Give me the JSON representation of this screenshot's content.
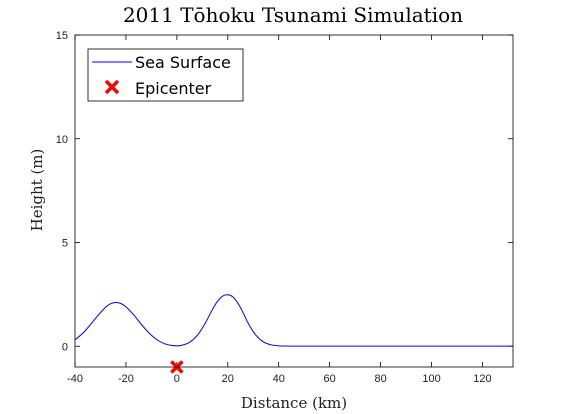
{
  "chart_data": {
    "type": "line",
    "title": "2011 Tōhoku Tsunami Simulation",
    "xlabel": "Distance (km)",
    "ylabel": "Height (m)",
    "xlim": [
      -40,
      132
    ],
    "ylim": [
      -1,
      15
    ],
    "xticks": [
      -40,
      -20,
      0,
      20,
      40,
      60,
      80,
      100,
      120
    ],
    "yticks": [
      0,
      5,
      10,
      15
    ],
    "grid": false,
    "legend_position": "top-left",
    "colors": {
      "sea_surface": "#0000ff",
      "epicenter": "#ff0000"
    },
    "series": [
      {
        "name": "Sea Surface",
        "kind": "line",
        "color": "#0000ff",
        "x": [
          -40,
          -37,
          -34,
          -31,
          -28,
          -26,
          -24,
          -22,
          -20,
          -17,
          -14,
          -11,
          -8,
          -5,
          -2,
          0,
          2,
          5,
          8,
          11,
          14,
          16,
          18,
          20,
          22,
          24,
          26,
          28,
          31,
          34,
          37,
          40,
          43,
          46,
          50,
          60,
          70,
          80,
          90,
          100,
          110,
          120,
          132
        ],
        "y": [
          0.31,
          0.62,
          1.03,
          1.48,
          1.88,
          2.05,
          2.11,
          2.06,
          1.9,
          1.52,
          1.06,
          0.65,
          0.33,
          0.13,
          0.04,
          0.02,
          0.05,
          0.19,
          0.52,
          1.08,
          1.78,
          2.17,
          2.42,
          2.48,
          2.38,
          2.07,
          1.62,
          1.11,
          0.54,
          0.21,
          0.07,
          0.02,
          0.01,
          0.005,
          0.005,
          0.005,
          0.005,
          0.005,
          0.005,
          0.005,
          0.005,
          0.005,
          0.005
        ]
      },
      {
        "name": "Epicenter",
        "kind": "marker",
        "marker": "x",
        "color": "#ff0000",
        "x": [
          0
        ],
        "y": [
          -1
        ]
      }
    ]
  }
}
